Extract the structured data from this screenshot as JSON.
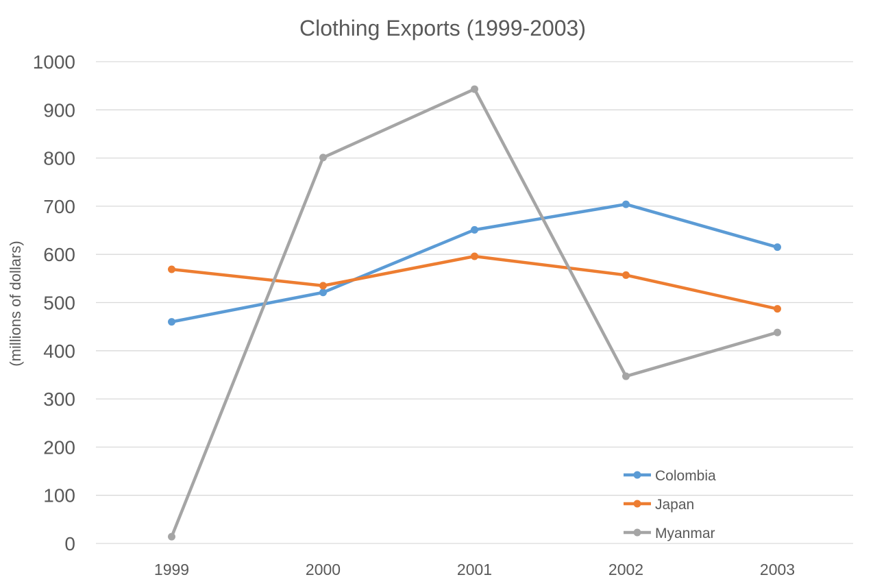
{
  "chart_data": {
    "type": "line",
    "title": "Clothing Exports (1999-2003)",
    "xlabel": "",
    "ylabel": "(millions of dollars)",
    "categories": [
      "1999",
      "2000",
      "2001",
      "2002",
      "2003"
    ],
    "ylim": [
      0,
      1000
    ],
    "yticks": [
      0,
      100,
      200,
      300,
      400,
      500,
      600,
      700,
      800,
      900,
      1000
    ],
    "grid": true,
    "legend_position": "bottom-right",
    "series": [
      {
        "name": "Colombia",
        "color": "#5b9bd5",
        "values": [
          460,
          521,
          651,
          704,
          615
        ]
      },
      {
        "name": "Japan",
        "color": "#ed7d31",
        "values": [
          569,
          535,
          596,
          557,
          487
        ]
      },
      {
        "name": "Myanmar",
        "color": "#a5a5a5",
        "values": [
          14,
          801,
          943,
          347,
          438
        ]
      }
    ]
  },
  "colors": {
    "grid": "#d9d9d9",
    "text": "#595959"
  }
}
